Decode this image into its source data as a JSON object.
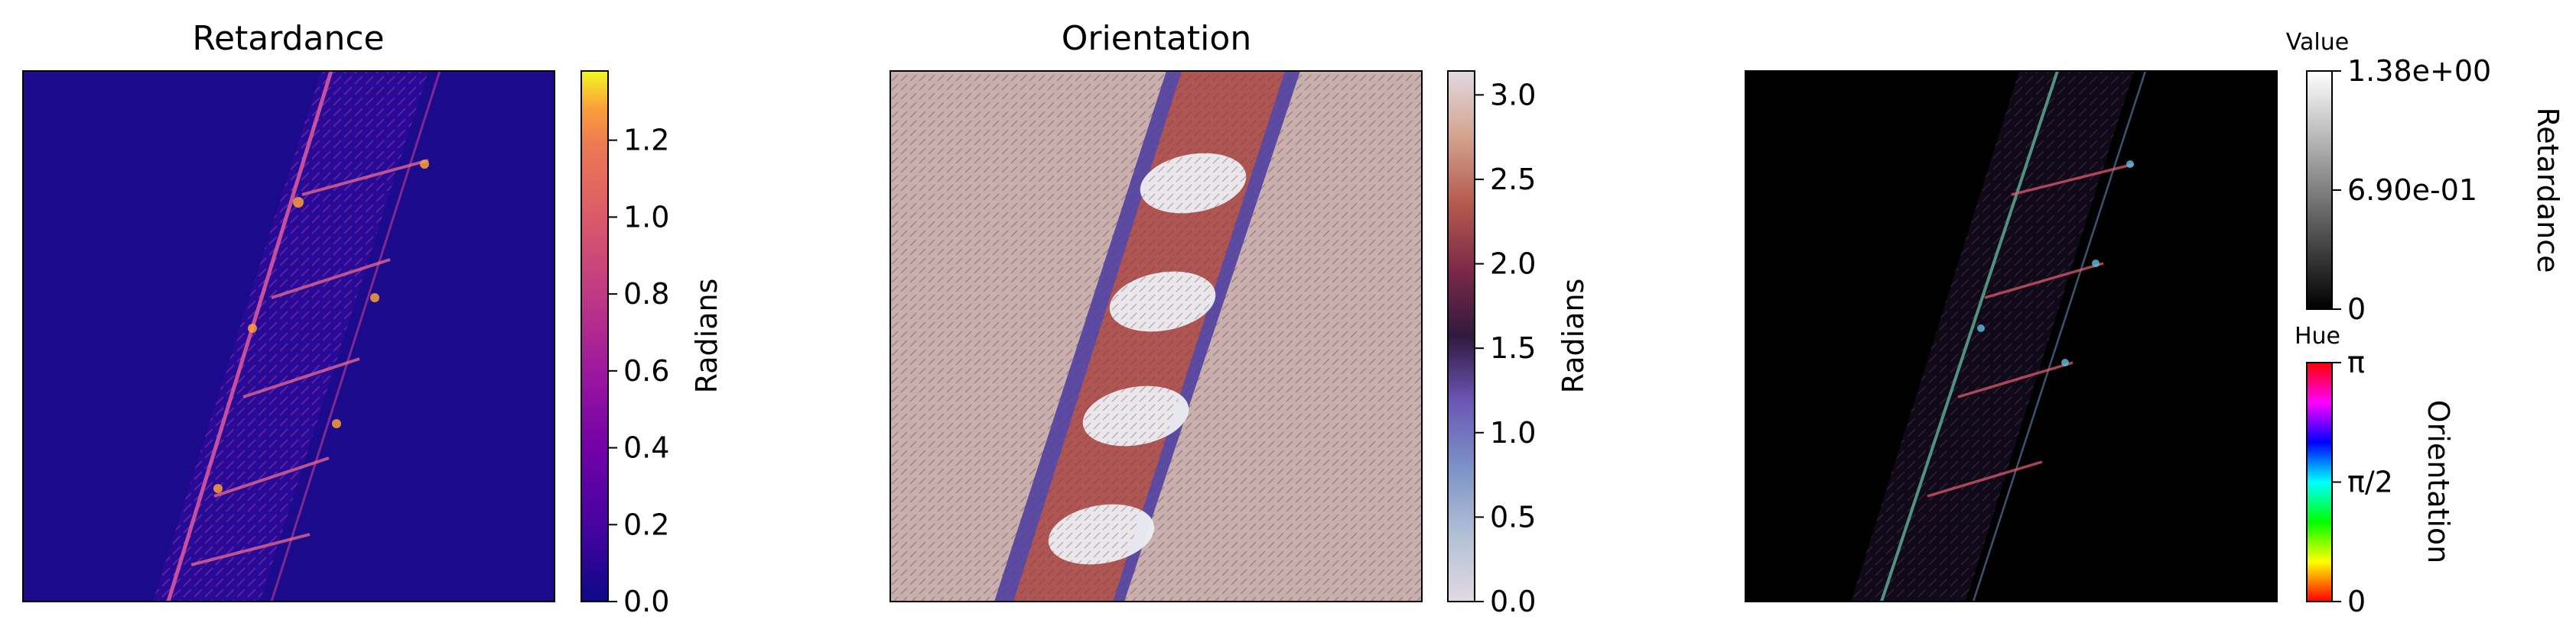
{
  "panels": [
    {
      "title": "Retardance"
    },
    {
      "title": "Orientation"
    },
    {
      "title": ""
    }
  ],
  "chart_data": [
    {
      "type": "heatmap",
      "title": "Retardance",
      "colormap": "plasma",
      "colorbar": {
        "label": "Radians",
        "range": [
          0.0,
          1.38
        ],
        "ticks": [
          0.0,
          0.2,
          0.4,
          0.6,
          0.8,
          1.0,
          1.2
        ],
        "tick_labels": [
          "0.0",
          "0.2",
          "0.4",
          "0.6",
          "0.8",
          "1.0",
          "1.2"
        ]
      },
      "colors": {
        "low": "#0d0887",
        "mid": "#cc4778",
        "high": "#f0f921"
      }
    },
    {
      "type": "heatmap",
      "title": "Orientation",
      "colormap": "twilight",
      "colorbar": {
        "label": "Radians",
        "range": [
          0.0,
          3.14159
        ],
        "ticks": [
          0.0,
          0.5,
          1.0,
          1.5,
          2.0,
          2.5,
          3.0
        ],
        "tick_labels": [
          "0.0",
          "0.5",
          "1.0",
          "1.5",
          "2.0",
          "2.5",
          "3.0"
        ]
      }
    },
    {
      "type": "heatmap",
      "title": "",
      "colormap": "hsv-overlay",
      "value_colorbar": {
        "header": "Value",
        "label": "Retardance",
        "colormap": "gray",
        "range": [
          0,
          1.38
        ],
        "ticks": [
          0,
          0.69,
          1.38
        ],
        "tick_labels": [
          "0",
          "6.90e-01",
          "1.38e+00"
        ]
      },
      "hue_colorbar": {
        "header": "Hue",
        "label": "Orientation",
        "colormap": "hsv",
        "range": [
          0,
          3.14159
        ],
        "ticks": [
          0,
          1.5708,
          3.14159
        ],
        "tick_labels": [
          "0",
          "π/2",
          "π"
        ]
      }
    }
  ]
}
